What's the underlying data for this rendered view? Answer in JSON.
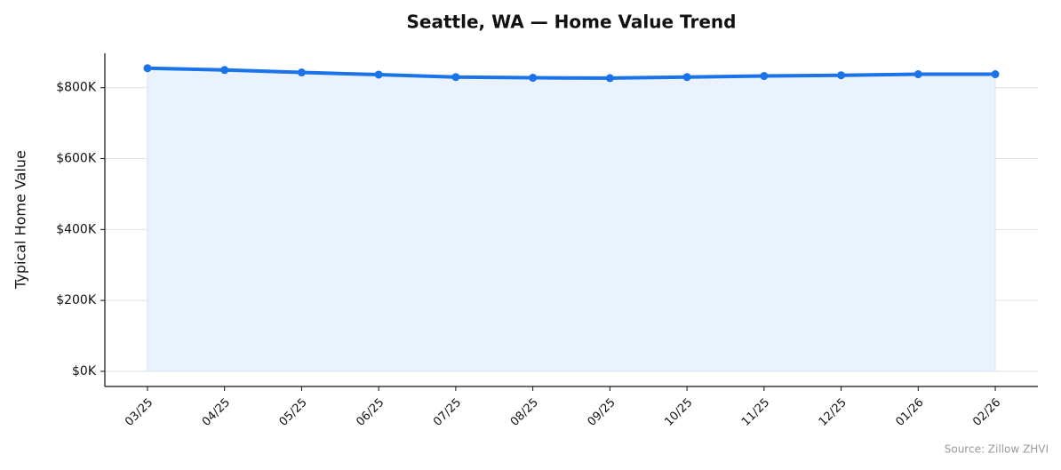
{
  "chart_data": {
    "type": "area-line",
    "title": "Seattle, WA — Home Value Trend",
    "y_label": "Typical Home Value",
    "source": "Source: Zillow ZHVI",
    "categories": [
      "03/25",
      "04/25",
      "05/25",
      "06/25",
      "07/25",
      "08/25",
      "09/25",
      "10/25",
      "11/25",
      "12/25",
      "01/26",
      "02/26"
    ],
    "values": [
      855000,
      850000,
      843000,
      837000,
      830000,
      828000,
      827000,
      830000,
      833000,
      835000,
      838000,
      838000
    ],
    "color": "#1a73e8",
    "fill_color": "#eaf2fd",
    "ylim": [
      -42700,
      897000
    ],
    "yticks": [
      {
        "value": 0,
        "label": "$0K"
      },
      {
        "value": 200000,
        "label": "$200K"
      },
      {
        "value": 400000,
        "label": "$400K"
      },
      {
        "value": 600000,
        "label": "$600K"
      },
      {
        "value": 800000,
        "label": "$800K"
      }
    ],
    "grid": true
  }
}
